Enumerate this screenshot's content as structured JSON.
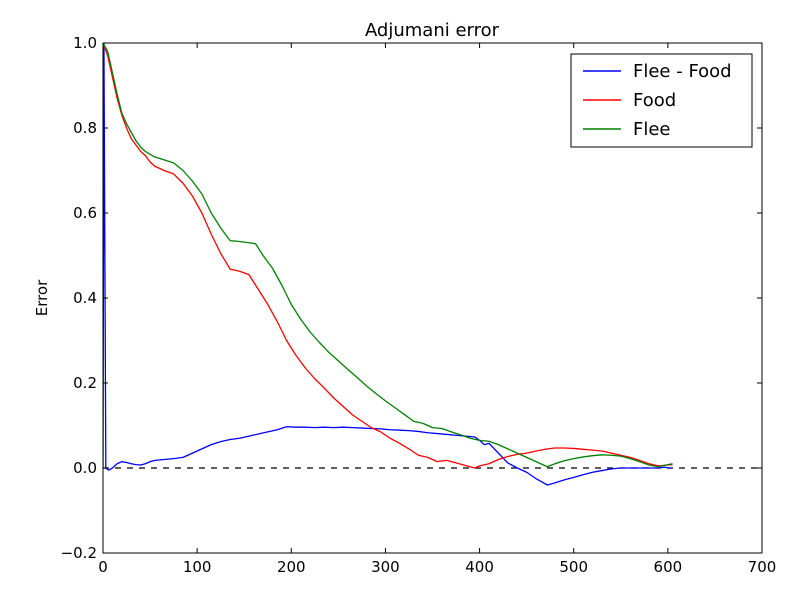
{
  "chart_data": {
    "type": "line",
    "title": "Adjumani error",
    "xlabel": "",
    "ylabel": "Error",
    "xlim": [
      0,
      700
    ],
    "ylim": [
      -0.2,
      1.0
    ],
    "xticks": [
      "0",
      "100",
      "200",
      "300",
      "400",
      "500",
      "600",
      "700"
    ],
    "yticks": [
      "−0.2",
      "0.0",
      "0.2",
      "0.4",
      "0.6",
      "0.8",
      "1.0"
    ],
    "grid": false,
    "legend_position": "top-right",
    "reference_line": {
      "y": 0.0,
      "style": "dashed",
      "color": "#000000"
    },
    "series": [
      {
        "name": "Flee - Food",
        "color": "#0000ff",
        "x": [
          0,
          1,
          3,
          6,
          10,
          15,
          20,
          25,
          30,
          35,
          40,
          45,
          50,
          55,
          65,
          75,
          85,
          95,
          105,
          115,
          125,
          135,
          145,
          155,
          165,
          175,
          185,
          195,
          205,
          215,
          225,
          235,
          245,
          255,
          265,
          275,
          285,
          295,
          305,
          315,
          325,
          335,
          345,
          355,
          365,
          375,
          385,
          395,
          400,
          405,
          410,
          420,
          430,
          440,
          450,
          460,
          472,
          480,
          490,
          500,
          510,
          520,
          530,
          540,
          550,
          560,
          570,
          580,
          590,
          597,
          600,
          604
        ],
        "y": [
          0.0,
          1.0,
          0.0,
          -0.005,
          0.0,
          0.01,
          0.015,
          0.013,
          0.01,
          0.008,
          0.007,
          0.01,
          0.015,
          0.018,
          0.02,
          0.022,
          0.025,
          0.035,
          0.045,
          0.055,
          0.062,
          0.067,
          0.07,
          0.075,
          0.08,
          0.085,
          0.09,
          0.097,
          0.096,
          0.096,
          0.095,
          0.096,
          0.095,
          0.096,
          0.095,
          0.094,
          0.093,
          0.092,
          0.09,
          0.089,
          0.088,
          0.086,
          0.083,
          0.081,
          0.079,
          0.077,
          0.075,
          0.073,
          0.065,
          0.055,
          0.058,
          0.035,
          0.012,
          0.0,
          -0.01,
          -0.025,
          -0.04,
          -0.035,
          -0.028,
          -0.022,
          -0.016,
          -0.01,
          -0.006,
          -0.002,
          0.0,
          0.0,
          0.0,
          0.0,
          0.0,
          0.002,
          0.0,
          0.0
        ]
      },
      {
        "name": "Food",
        "color": "#ff0000",
        "x": [
          0,
          5,
          10,
          15,
          20,
          25,
          30,
          35,
          40,
          45,
          50,
          55,
          65,
          75,
          85,
          95,
          105,
          115,
          125,
          135,
          145,
          155,
          165,
          175,
          185,
          195,
          205,
          215,
          225,
          235,
          245,
          255,
          265,
          275,
          285,
          295,
          305,
          315,
          325,
          335,
          345,
          355,
          365,
          375,
          385,
          395,
          400,
          410,
          420,
          430,
          440,
          450,
          460,
          472,
          480,
          490,
          500,
          510,
          520,
          530,
          540,
          550,
          560,
          570,
          580,
          590,
          600,
          605
        ],
        "y": [
          1.0,
          0.97,
          0.92,
          0.87,
          0.83,
          0.8,
          0.775,
          0.76,
          0.745,
          0.735,
          0.72,
          0.71,
          0.7,
          0.692,
          0.67,
          0.64,
          0.6,
          0.55,
          0.505,
          0.468,
          0.463,
          0.455,
          0.42,
          0.385,
          0.345,
          0.3,
          0.265,
          0.235,
          0.21,
          0.188,
          0.165,
          0.145,
          0.125,
          0.11,
          0.095,
          0.085,
          0.07,
          0.058,
          0.045,
          0.03,
          0.025,
          0.015,
          0.018,
          0.012,
          0.006,
          0.0,
          0.005,
          0.01,
          0.02,
          0.027,
          0.032,
          0.035,
          0.04,
          0.045,
          0.047,
          0.047,
          0.046,
          0.044,
          0.042,
          0.04,
          0.035,
          0.03,
          0.025,
          0.018,
          0.01,
          0.005,
          0.007,
          0.008
        ]
      },
      {
        "name": "Flee",
        "color": "#008000",
        "x": [
          0,
          5,
          10,
          15,
          20,
          25,
          30,
          35,
          40,
          45,
          50,
          55,
          65,
          75,
          85,
          95,
          105,
          115,
          125,
          135,
          145,
          155,
          162,
          170,
          180,
          190,
          200,
          210,
          220,
          230,
          240,
          250,
          260,
          270,
          280,
          290,
          300,
          310,
          320,
          330,
          340,
          350,
          360,
          370,
          380,
          390,
          400,
          410,
          420,
          430,
          440,
          450,
          460,
          472,
          480,
          490,
          500,
          510,
          520,
          530,
          540,
          550,
          560,
          570,
          580,
          590,
          600,
          605
        ],
        "y": [
          1.0,
          0.98,
          0.93,
          0.88,
          0.835,
          0.81,
          0.79,
          0.77,
          0.755,
          0.745,
          0.738,
          0.732,
          0.725,
          0.718,
          0.7,
          0.675,
          0.645,
          0.6,
          0.565,
          0.535,
          0.533,
          0.53,
          0.528,
          0.5,
          0.47,
          0.43,
          0.385,
          0.35,
          0.32,
          0.295,
          0.272,
          0.252,
          0.232,
          0.213,
          0.193,
          0.175,
          0.158,
          0.142,
          0.126,
          0.11,
          0.105,
          0.095,
          0.093,
          0.085,
          0.078,
          0.07,
          0.065,
          0.063,
          0.055,
          0.045,
          0.035,
          0.025,
          0.015,
          0.003,
          0.01,
          0.017,
          0.022,
          0.026,
          0.029,
          0.031,
          0.03,
          0.028,
          0.022,
          0.015,
          0.007,
          0.003,
          0.008,
          0.01
        ]
      }
    ]
  }
}
